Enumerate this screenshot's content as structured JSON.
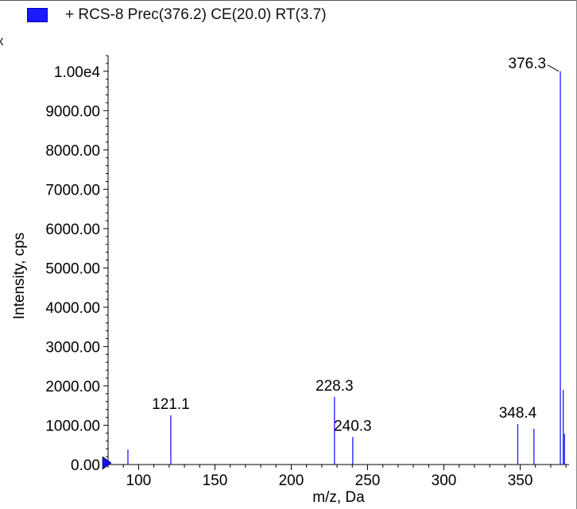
{
  "legend": {
    "label": "+ RCS-8 Prec(376.2) CE(20.0) RT(3.7)",
    "color": "#1a1aff"
  },
  "close_mark": "x",
  "chart_data": {
    "type": "bar",
    "title": "",
    "xlabel": "m/z, Da",
    "ylabel": "Intensity, cps",
    "xlim": [
      80,
      382
    ],
    "ylim": [
      0,
      10400
    ],
    "x_ticks": [
      100,
      150,
      200,
      250,
      300,
      350
    ],
    "x_tick_labels": [
      "100",
      "150",
      "200",
      "250",
      "300",
      "350"
    ],
    "y_ticks": [
      0,
      1000,
      2000,
      3000,
      4000,
      5000,
      6000,
      7000,
      8000,
      9000,
      10000
    ],
    "y_tick_labels": [
      "0.00",
      "1000.00",
      "2000.00",
      "3000.00",
      "4000.00",
      "5000.00",
      "6000.00",
      "7000.00",
      "8000.00",
      "9000.00",
      "1.00e4"
    ],
    "series": [
      {
        "color": "#1a1aff",
        "peaks": [
          {
            "x": 93.0,
            "y": 380
          },
          {
            "x": 121.1,
            "y": 1250
          },
          {
            "x": 228.3,
            "y": 1720
          },
          {
            "x": 240.3,
            "y": 700
          },
          {
            "x": 348.4,
            "y": 1030
          },
          {
            "x": 359.0,
            "y": 910
          },
          {
            "x": 376.3,
            "y": 10000
          },
          {
            "x": 378.2,
            "y": 1900
          },
          {
            "x": 379.0,
            "y": 780
          }
        ]
      }
    ],
    "annotations": [
      {
        "text": "121.1",
        "x": 121.1,
        "y": 1250
      },
      {
        "text": "228.3",
        "x": 228.3,
        "y": 1720
      },
      {
        "text": "240.3",
        "x": 240.3,
        "y": 700
      },
      {
        "text": "348.4",
        "x": 348.4,
        "y": 1030
      },
      {
        "text": "376.3",
        "x": 376.3,
        "y": 10000
      }
    ]
  }
}
